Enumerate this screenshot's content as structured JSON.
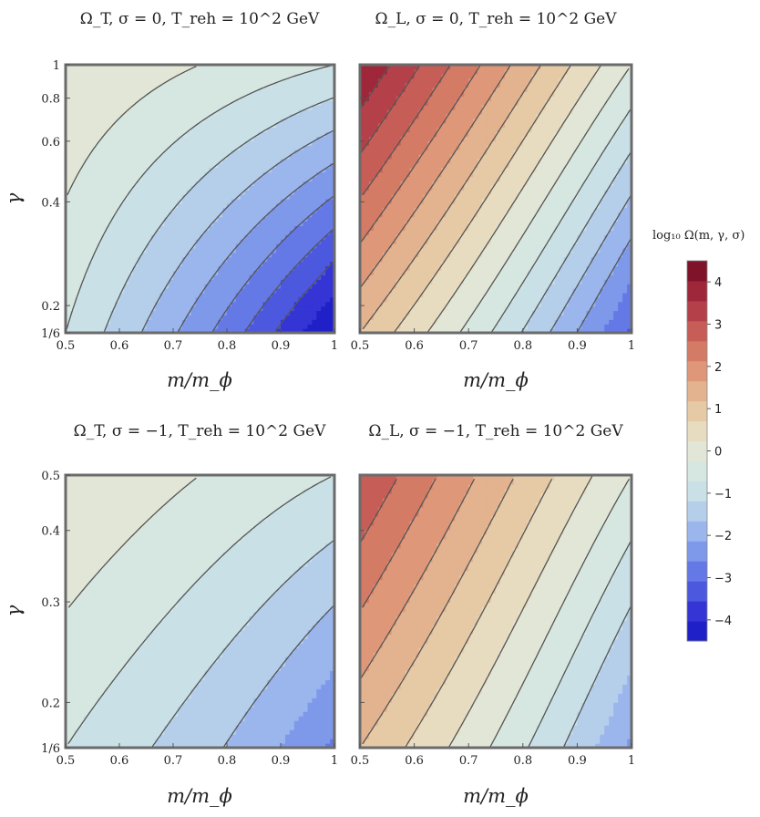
{
  "chart_data": [
    {
      "type": "contour",
      "title": "Ω_T, σ = 0, T_reh = 10^2 GeV",
      "xlabel": "m/m_ϕ",
      "ylabel": "γ",
      "xlim": [
        0.5,
        1
      ],
      "ylim": [
        0.1667,
        1
      ],
      "x_ticks": [
        "0.5",
        "0.6",
        "0.7",
        "0.8",
        "0.9",
        "1"
      ],
      "y_ticks": [
        "1/6",
        "0.2",
        "0.4",
        "0.6",
        "0.8",
        "1"
      ],
      "y_tick_values": [
        0.1667,
        0.2,
        0.4,
        0.6,
        0.8,
        1
      ],
      "y_scale": "log",
      "contour_level_step": 0.5,
      "value_range": [
        -4,
        0.5
      ],
      "corner_values": {
        "x0_y0": -0.5,
        "x1_y0": -4,
        "x0_y1": 0.5,
        "x1_y1": -0.5
      }
    },
    {
      "type": "contour",
      "title": "Ω_L, σ = 0, T_reh = 10^2 GeV",
      "xlabel": "m/m_ϕ",
      "ylabel": "",
      "xlim": [
        0.5,
        1
      ],
      "ylim": [
        0.1667,
        1
      ],
      "x_ticks": [
        "0.5",
        "0.6",
        "0.7",
        "0.8",
        "0.9",
        "1"
      ],
      "y_scale": "log",
      "contour_level_step": 0.5,
      "value_range": [
        -2.5,
        4.5
      ],
      "corner_values": {
        "x0_y0": 1.5,
        "x1_y0": -2.5,
        "x0_y1": 4.5,
        "x1_y1": 0
      }
    },
    {
      "type": "contour",
      "title": "Ω_T, σ = −1, T_reh = 10^2 GeV",
      "xlabel": "m/m_ϕ",
      "ylabel": "γ",
      "xlim": [
        0.5,
        1
      ],
      "ylim": [
        0.1667,
        0.5
      ],
      "x_ticks": [
        "0.5",
        "0.6",
        "0.7",
        "0.8",
        "0.9",
        "1"
      ],
      "y_ticks": [
        "1/6",
        "0.2",
        "0.3",
        "0.4",
        "0.5"
      ],
      "y_tick_values": [
        0.1667,
        0.2,
        0.3,
        0.4,
        0.5
      ],
      "y_scale": "log",
      "contour_level_step": 0.5,
      "value_range": [
        -2,
        0.5
      ],
      "corner_values": {
        "x0_y0": -0.5,
        "x1_y0": -2,
        "x0_y1": 0.5,
        "x1_y1": -0.5
      }
    },
    {
      "type": "contour",
      "title": "Ω_L, σ = −1, T_reh = 10^2 GeV",
      "xlabel": "m/m_ϕ",
      "ylabel": "",
      "xlim": [
        0.5,
        1
      ],
      "ylim": [
        0.1667,
        0.5
      ],
      "x_ticks": [
        "0.5",
        "0.6",
        "0.7",
        "0.8",
        "0.9",
        "1"
      ],
      "y_scale": "log",
      "contour_level_step": 0.5,
      "value_range": [
        -1.5,
        3.5
      ],
      "corner_values": {
        "x0_y0": 1.5,
        "x1_y0": -1.5,
        "x0_y1": 3.5,
        "x1_y1": 0
      }
    }
  ],
  "colorbar": {
    "label": "log₁₀ Ω(m, γ, σ)",
    "ticks": [
      "4",
      "3",
      "2",
      "1",
      "0",
      "−1",
      "−2",
      "−3",
      "−4"
    ],
    "tick_values": [
      4,
      3,
      2,
      1,
      0,
      -1,
      -2,
      -3,
      -4
    ],
    "range": [
      -4.5,
      4.5
    ],
    "level_step": 0.5,
    "colors": [
      "#2020c8",
      "#3535d6",
      "#4c58de",
      "#6579e6",
      "#7f99ea",
      "#9bb6ec",
      "#b5cfea",
      "#c8e0e6",
      "#d6e6e0",
      "#e2e6d6",
      "#e8dcc0",
      "#e6caa6",
      "#e3b28f",
      "#de9879",
      "#d47b66",
      "#c65e57",
      "#b4414a",
      "#9e2739",
      "#7e1329"
    ]
  }
}
